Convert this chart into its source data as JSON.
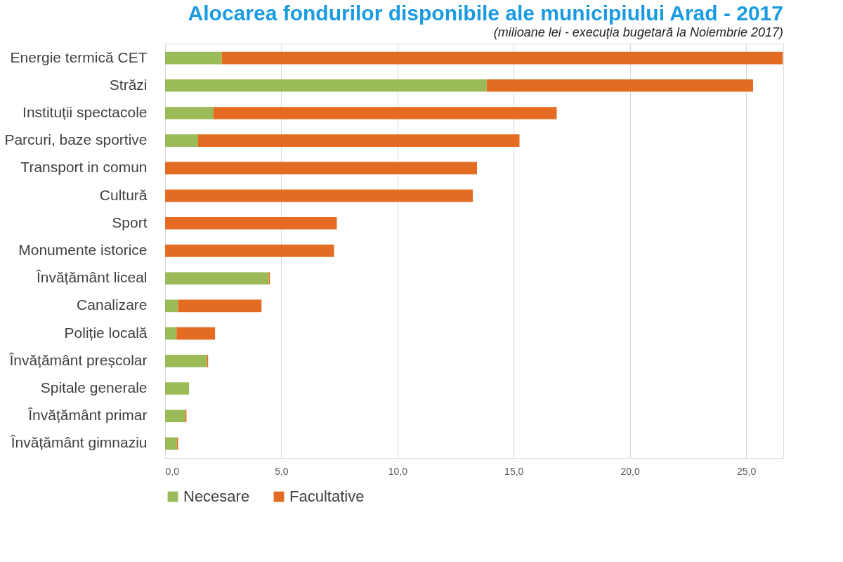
{
  "chart_data": {
    "type": "bar",
    "orientation": "horizontal",
    "stacked": true,
    "title": "Alocarea fondurilor disponibile ale municipiului Arad - 2017",
    "subtitle": "(milioane lei - execuția bugetară la Noiembrie 2017)",
    "categories": [
      "Energie termică CET",
      "Străzi",
      "Instituții spectacole",
      "Parcuri, baze sportive",
      "Transport in comun",
      "Cultură",
      "Sport",
      "Monumente istorice",
      "Învățământ liceal",
      "Canalizare",
      "Poliție locală",
      "Învățământ preșcolar",
      "Spitale generale",
      "Învățământ primar",
      "Învățământ gimnaziu"
    ],
    "series": [
      {
        "name": "Necesare",
        "color": "#9bbb59",
        "values": [
          2.44,
          13.84,
          2.08,
          1.42,
          0,
          0,
          0,
          0,
          4.46,
          0.56,
          0.49,
          1.8,
          1.03,
          0.87,
          0.51
        ]
      },
      {
        "name": "Facultative",
        "color": "#e46c22",
        "values": [
          24.14,
          11.46,
          14.77,
          13.83,
          13.42,
          13.24,
          7.39,
          7.27,
          0.05,
          3.59,
          1.66,
          0.05,
          0,
          0.05,
          0.05
        ]
      }
    ],
    "xlim": [
      0,
      26.6
    ],
    "xticks": [
      {
        "value": 0,
        "label": "0,0"
      },
      {
        "value": 5,
        "label": "5,0"
      },
      {
        "value": 10,
        "label": "10,0"
      },
      {
        "value": 15,
        "label": "15,0"
      },
      {
        "value": 20,
        "label": "20,0"
      },
      {
        "value": 25,
        "label": "25,0"
      }
    ],
    "grid": "x",
    "legend": "bottom"
  }
}
